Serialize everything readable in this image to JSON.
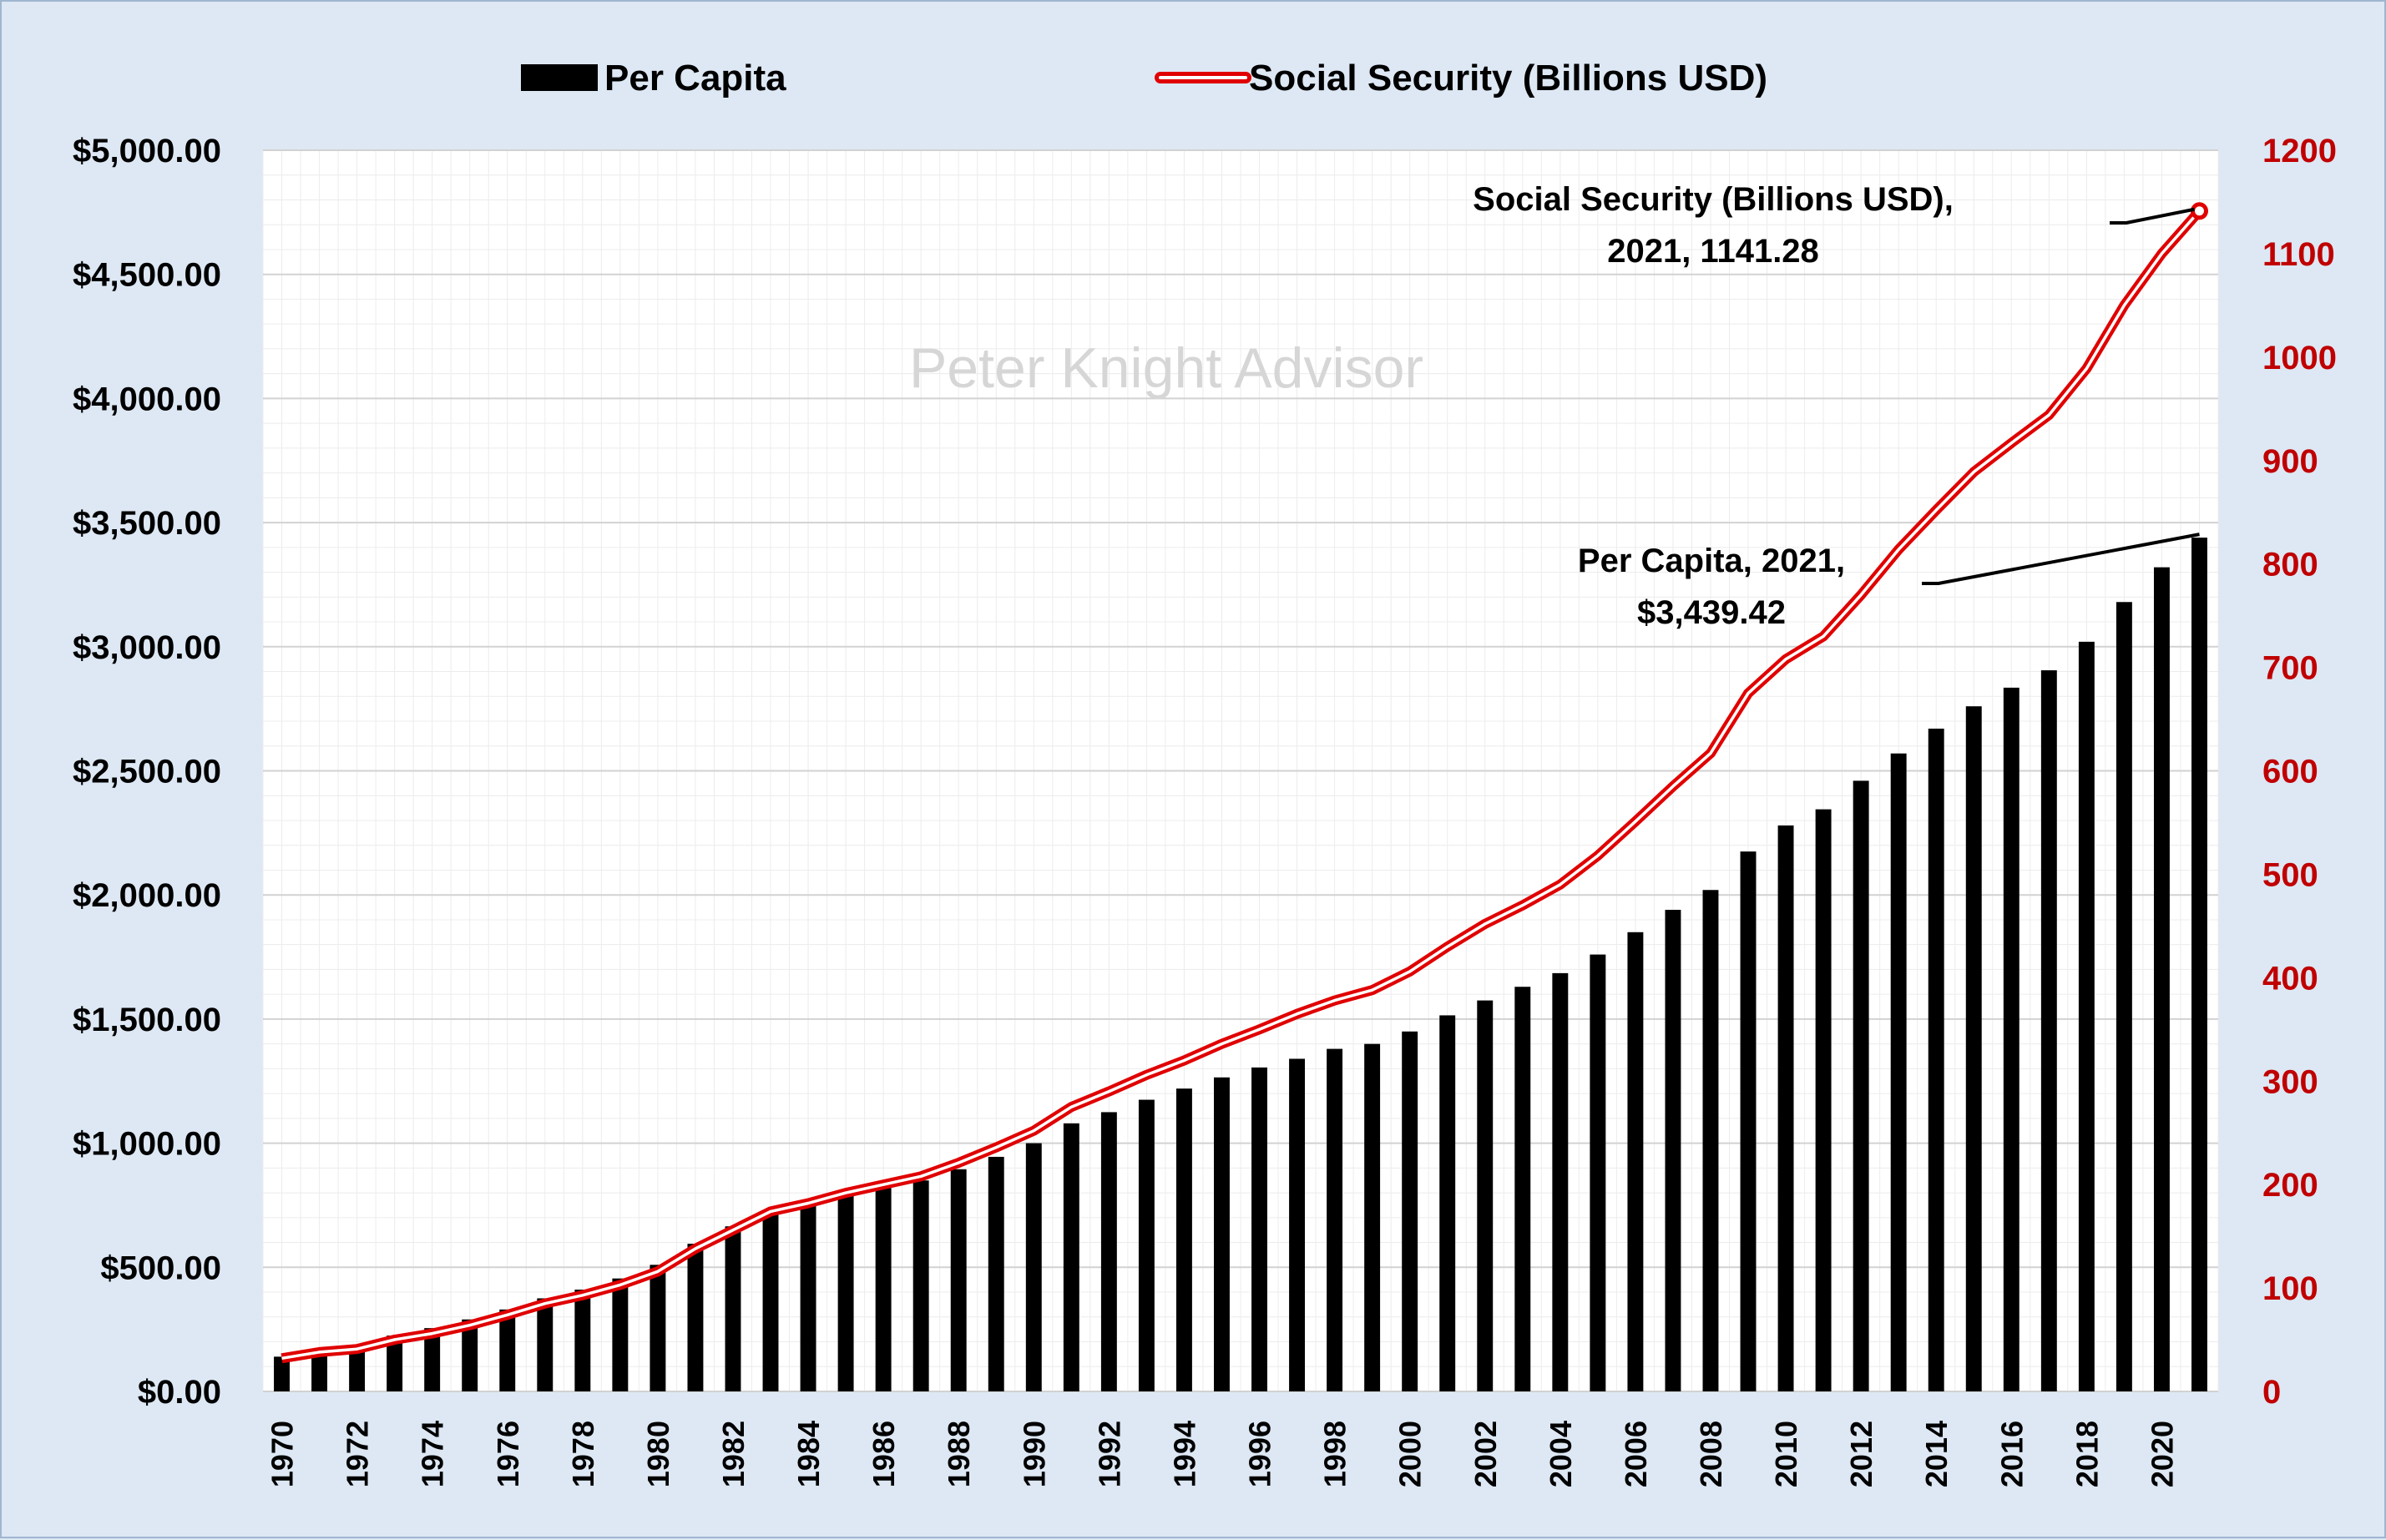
{
  "chart_data": {
    "type": "bar",
    "title": "",
    "xlabel": "",
    "ylabel": "",
    "watermark": "Peter Knight Advisor",
    "x": [
      1970,
      1971,
      1972,
      1973,
      1974,
      1975,
      1976,
      1977,
      1978,
      1979,
      1980,
      1981,
      1982,
      1983,
      1984,
      1985,
      1986,
      1987,
      1988,
      1989,
      1990,
      1991,
      1992,
      1993,
      1994,
      1995,
      1996,
      1997,
      1998,
      1999,
      2000,
      2001,
      2002,
      2003,
      2004,
      2005,
      2006,
      2007,
      2008,
      2009,
      2010,
      2011,
      2012,
      2013,
      2014,
      2015,
      2016,
      2017,
      2018,
      2019,
      2020,
      2021
    ],
    "x_tick_labels": [
      "1970",
      "1972",
      "1974",
      "1976",
      "1978",
      "1980",
      "1982",
      "1984",
      "1986",
      "1988",
      "1990",
      "1992",
      "1994",
      "1996",
      "1998",
      "2000",
      "2002",
      "2004",
      "2006",
      "2008",
      "2010",
      "2012",
      "2014",
      "2016",
      "2018",
      "2020"
    ],
    "series": [
      {
        "name": "Per Capita",
        "kind": "bar",
        "axis": "left",
        "color": "#000000",
        "values": [
          140,
          165,
          180,
          225,
          255,
          290,
          330,
          375,
          410,
          455,
          510,
          595,
          665,
          730,
          760,
          795,
          820,
          850,
          895,
          945,
          1000,
          1080,
          1125,
          1175,
          1220,
          1265,
          1305,
          1340,
          1380,
          1400,
          1450,
          1515,
          1575,
          1630,
          1685,
          1760,
          1850,
          1940,
          2020,
          2175,
          2280,
          2345,
          2460,
          2570,
          2670,
          2760,
          2835,
          2905,
          3020,
          3180,
          3320,
          3439.42
        ]
      },
      {
        "name": "Social Security (Billions USD)",
        "kind": "line",
        "axis": "right",
        "color": "#e00000",
        "values": [
          32,
          38,
          41,
          50,
          56,
          64,
          74,
          85,
          93,
          103,
          116,
          138,
          156,
          174,
          182,
          192,
          200,
          208,
          221,
          236,
          252,
          275,
          290,
          306,
          320,
          336,
          350,
          365,
          378,
          388,
          406,
          430,
          452,
          470,
          490,
          518,
          551,
          585,
          617,
          675,
          708,
          730,
          770,
          814,
          852,
          889,
          917,
          944,
          989,
          1050,
          1100,
          1141.28
        ]
      }
    ],
    "y_left": {
      "min": 0,
      "max": 5000,
      "step": 500,
      "tick_labels": [
        "$0.00",
        "$500.00",
        "$1,000.00",
        "$1,500.00",
        "$2,000.00",
        "$2,500.00",
        "$3,000.00",
        "$3,500.00",
        "$4,000.00",
        "$4,500.00",
        "$5,000.00"
      ]
    },
    "y_right": {
      "min": 0,
      "max": 1200,
      "step": 100,
      "tick_labels": [
        "0",
        "100",
        "200",
        "300",
        "400",
        "500",
        "600",
        "700",
        "800",
        "900",
        "1000",
        "1100",
        "1200"
      ]
    },
    "grid": true,
    "legend": {
      "placement": "top-center",
      "entries": [
        "Per Capita",
        "Social Security (Billions USD)"
      ]
    },
    "annotations": [
      {
        "series": "Social Security (Billions USD)",
        "lines": [
          "Social Security (Billions USD),",
          "2021, 1141.28"
        ]
      },
      {
        "series": "Per Capita",
        "lines": [
          "Per Capita, 2021,",
          "$3,439.42"
        ]
      }
    ],
    "colors": {
      "bars": "#000000",
      "line": "#e00000",
      "right_axis": "#c00000",
      "background": "#dde8f4",
      "plot": "#ffffff"
    }
  }
}
